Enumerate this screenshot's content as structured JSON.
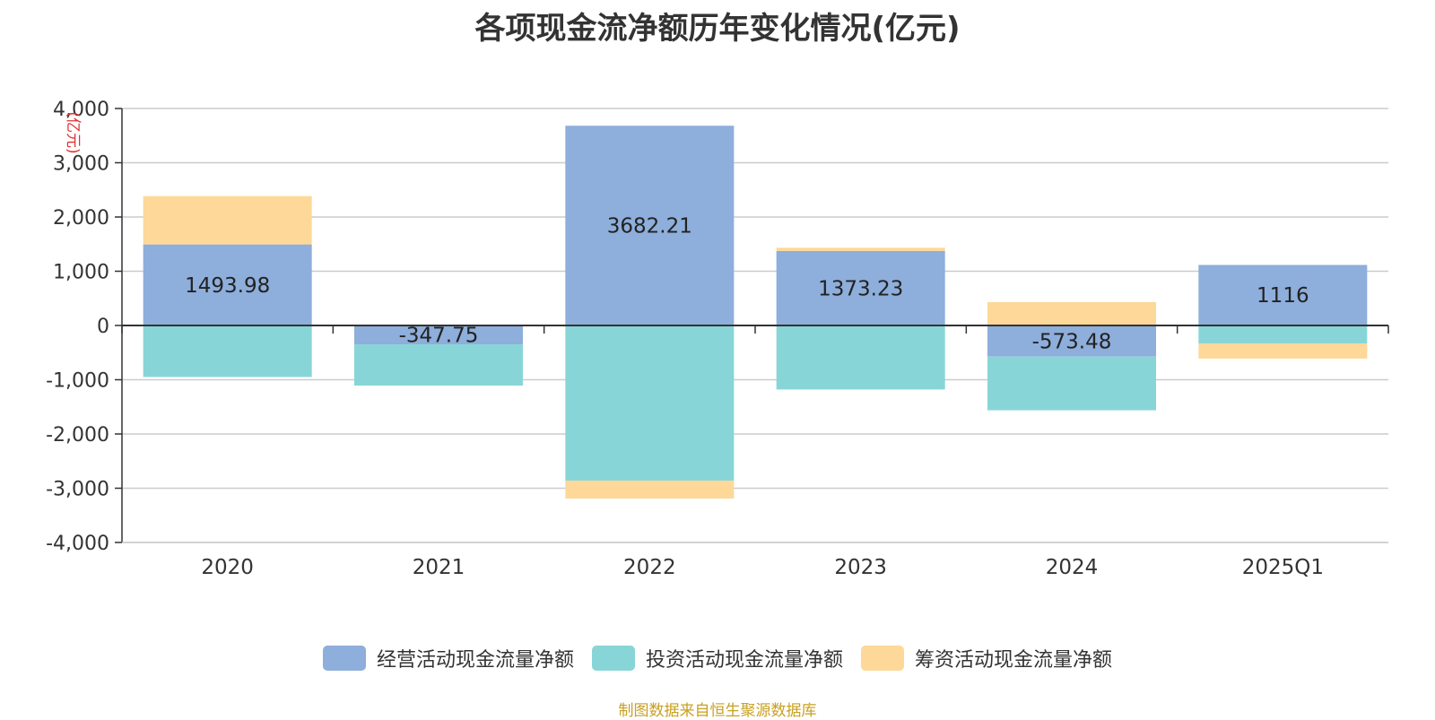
{
  "chart_data": {
    "type": "bar",
    "stacked": true,
    "title": "各项现金流净额历年变化情况(亿元)",
    "unit_label": "(亿元)",
    "categories": [
      "2020",
      "2021",
      "2022",
      "2023",
      "2024",
      "2025Q1"
    ],
    "ylim": [
      -4000,
      4000
    ],
    "yticks": [
      4000,
      3000,
      2000,
      1000,
      0,
      -1000,
      -2000,
      -3000,
      -4000
    ],
    "ytick_labels": [
      "4,000",
      "3,000",
      "2,000",
      "1,000",
      "0",
      "-1,000",
      "-2,000",
      "-3,000",
      "-4,000"
    ],
    "grid": true,
    "legend_position": "bottom",
    "series": [
      {
        "name": "经营活动现金流量净额",
        "color": "#8eaedb",
        "values": [
          1493.98,
          -347.75,
          3682.21,
          1373.23,
          -573.48,
          1116
        ],
        "labels": [
          "1493.98",
          "-347.75",
          "3682.21",
          "1373.23",
          "-573.48",
          "1116"
        ]
      },
      {
        "name": "投资活动现金流量净额",
        "color": "#88d5d8",
        "values": [
          -950,
          -760,
          -2860,
          -1180,
          -990,
          -330
        ]
      },
      {
        "name": "筹资活动现金流量净额",
        "color": "#fdd898",
        "values": [
          890,
          0,
          -330,
          60,
          430,
          -280
        ]
      }
    ]
  },
  "source": "制图数据来自恒生聚源数据库"
}
